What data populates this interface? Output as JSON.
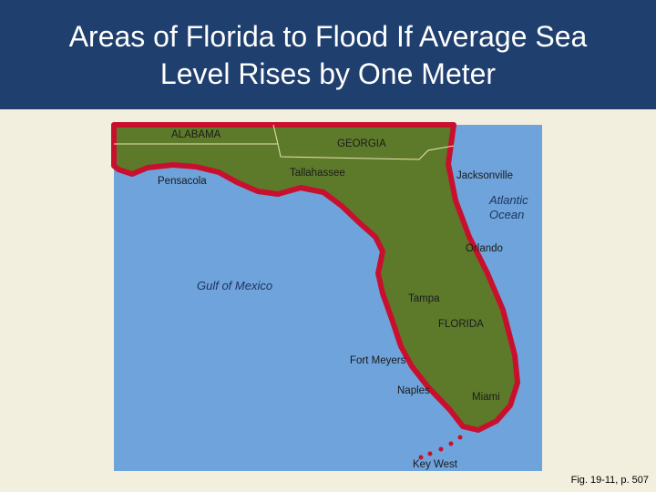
{
  "header": {
    "title": [
      "Areas of Florida to Flood If Average Sea",
      "Level Rises by One Meter"
    ]
  },
  "map": {
    "labels": {
      "alabama": "ALABAMA",
      "georgia": "GEORGIA",
      "tallahassee": "Tallahassee",
      "pensacola": "Pensacola",
      "jacksonville": "Jacksonville",
      "atlantic_ocean": [
        "Atlantic",
        "Ocean"
      ],
      "orlando": "Orlando",
      "gulf_of_mexico": "Gulf of Mexico",
      "tampa": "Tampa",
      "florida": "FLORIDA",
      "fort_meyers": "Fort Meyers",
      "naples": "Naples",
      "miami": "Miami",
      "key_west": "Key West"
    }
  },
  "caption": "Fig. 19-11, p. 507"
}
